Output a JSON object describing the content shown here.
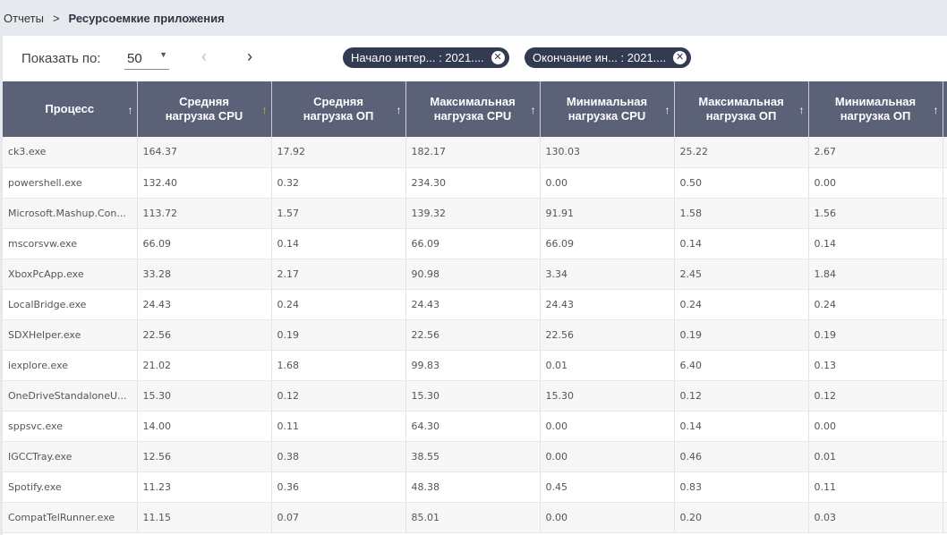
{
  "breadcrumb": {
    "parent": "Отчеты",
    "separator": ">",
    "current": "Ресурсоемкие приложения"
  },
  "toolbar": {
    "page_size_label": "Показать по:",
    "page_size_value": "50",
    "prev": "‹",
    "next": "›",
    "filters": [
      {
        "label": "Начало интер... : 2021...."
      },
      {
        "label": "Окончание ин... : 2021...."
      }
    ]
  },
  "table": {
    "columns": [
      {
        "label": "Процесс",
        "sort_active": false
      },
      {
        "label": "Средняя нагрузка CPU",
        "sort_active": true
      },
      {
        "label": "Средняя нагрузка ОП",
        "sort_active": false
      },
      {
        "label": "Максимальная нагрузка CPU",
        "sort_active": false
      },
      {
        "label": "Минимальная нагрузка CPU",
        "sort_active": false
      },
      {
        "label": "Максимальная нагрузка ОП",
        "sort_active": false
      },
      {
        "label": "Минимальная нагрузка ОП",
        "sort_active": false
      }
    ],
    "rows": [
      [
        "ck3.exe",
        "164.37",
        "17.92",
        "182.17",
        "130.03",
        "25.22",
        "2.67"
      ],
      [
        "powershell.exe",
        "132.40",
        "0.32",
        "234.30",
        "0.00",
        "0.50",
        "0.00"
      ],
      [
        "Microsoft.Mashup.Con...",
        "113.72",
        "1.57",
        "139.32",
        "91.91",
        "1.58",
        "1.56"
      ],
      [
        "mscorsvw.exe",
        "66.09",
        "0.14",
        "66.09",
        "66.09",
        "0.14",
        "0.14"
      ],
      [
        "XboxPcApp.exe",
        "33.28",
        "2.17",
        "90.98",
        "3.34",
        "2.45",
        "1.84"
      ],
      [
        "LocalBridge.exe",
        "24.43",
        "0.24",
        "24.43",
        "24.43",
        "0.24",
        "0.24"
      ],
      [
        "SDXHelper.exe",
        "22.56",
        "0.19",
        "22.56",
        "22.56",
        "0.19",
        "0.19"
      ],
      [
        "iexplore.exe",
        "21.02",
        "1.68",
        "99.83",
        "0.01",
        "6.40",
        "0.13"
      ],
      [
        "OneDriveStandaloneU...",
        "15.30",
        "0.12",
        "15.30",
        "15.30",
        "0.12",
        "0.12"
      ],
      [
        "sppsvc.exe",
        "14.00",
        "0.11",
        "64.30",
        "0.00",
        "0.14",
        "0.00"
      ],
      [
        "IGCCTray.exe",
        "12.56",
        "0.38",
        "38.55",
        "0.00",
        "0.46",
        "0.01"
      ],
      [
        "Spotify.exe",
        "11.23",
        "0.36",
        "48.38",
        "0.45",
        "0.83",
        "0.11"
      ],
      [
        "CompatTelRunner.exe",
        "11.15",
        "0.07",
        "85.01",
        "0.00",
        "0.20",
        "0.03"
      ]
    ]
  }
}
